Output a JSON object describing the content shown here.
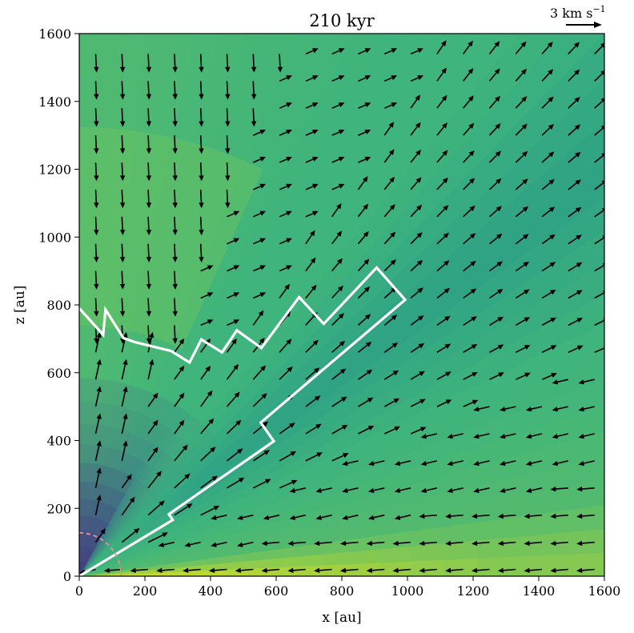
{
  "chart_data": {
    "type": "quiver",
    "title": "210 kyr",
    "xlabel": "x [au]",
    "ylabel": "z [au]",
    "xlim": [
      0,
      1600
    ],
    "ylim": [
      0,
      1600
    ],
    "x_ticks": [
      0,
      200,
      400,
      600,
      800,
      1000,
      1200,
      1400,
      1600
    ],
    "y_ticks": [
      0,
      200,
      400,
      600,
      800,
      1000,
      1200,
      1400,
      1600
    ],
    "x_tick_labels": [
      "0",
      "200",
      "400",
      "600",
      "800",
      "1000",
      "1200",
      "1400",
      "1600"
    ],
    "y_tick_labels": [
      "0",
      "200",
      "400",
      "600",
      "800",
      "1000",
      "1200",
      "1400",
      "1600"
    ],
    "colormap": "viridis",
    "colors": {
      "background": "#3fb47c",
      "envelope_green": "#6cc35e",
      "cone_teal": "#2a9c89",
      "cavity_dark": "#46357d",
      "cavity_mid": "#3e5b8e",
      "disk_yellow": "#e6e21a",
      "boundary": "#ffffff",
      "arrows": "#000000",
      "circle": "#e0908e"
    },
    "quiver_key": {
      "label": "3 km s",
      "exponent": "−1",
      "speed_km_s": 3
    },
    "outflow_boundary": [
      [
        0,
        790
      ],
      [
        73,
        712
      ],
      [
        80,
        786
      ],
      [
        135,
        702
      ],
      [
        170,
        690
      ],
      [
        280,
        664
      ],
      [
        336,
        630
      ],
      [
        372,
        698
      ],
      [
        435,
        660
      ],
      [
        480,
        725
      ],
      [
        555,
        673
      ],
      [
        670,
        823
      ],
      [
        745,
        744
      ],
      [
        906,
        910
      ],
      [
        993,
        815
      ],
      [
        553,
        453
      ],
      [
        593,
        398
      ],
      [
        273,
        183
      ],
      [
        285,
        166
      ],
      [
        0,
        0
      ]
    ],
    "inner_circle_radius_au": 128
  }
}
